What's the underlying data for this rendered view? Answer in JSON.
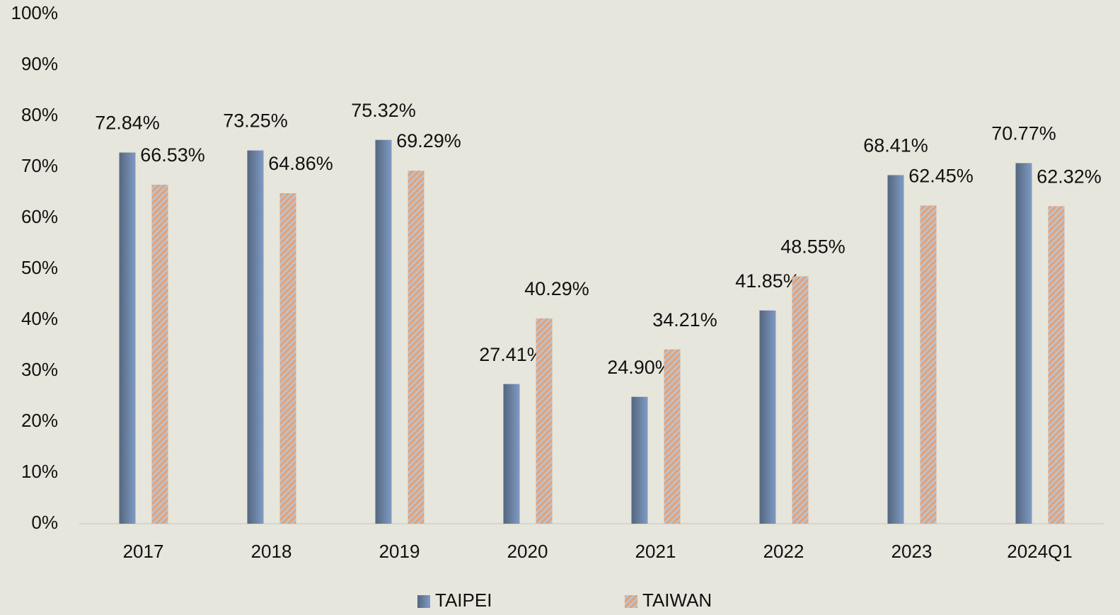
{
  "chart_data": {
    "type": "bar",
    "categories": [
      "2017",
      "2018",
      "2019",
      "2020",
      "2021",
      "2022",
      "2023",
      "2024Q1"
    ],
    "series": [
      {
        "name": "TAIPEI",
        "color": "#7f9bc4",
        "values": [
          72.84,
          73.25,
          75.32,
          27.41,
          24.9,
          41.85,
          68.41,
          70.77
        ],
        "value_labels": [
          "72.84%",
          "73.25%",
          "75.32%",
          "27.41%",
          "24.90%",
          "41.85%",
          "68.41%",
          "70.77%"
        ]
      },
      {
        "name": "TAIWAN",
        "color": "#e8a070",
        "values": [
          66.53,
          64.86,
          69.29,
          40.29,
          34.21,
          48.55,
          62.45,
          62.32
        ],
        "value_labels": [
          "66.53%",
          "64.86%",
          "69.29%",
          "40.29%",
          "34.21%",
          "48.55%",
          "62.45%",
          "62.32%"
        ]
      }
    ],
    "ylim": [
      0,
      100
    ],
    "yticks": [
      {
        "value": 0,
        "label": "0%"
      },
      {
        "value": 10,
        "label": "10%"
      },
      {
        "value": 20,
        "label": "20%"
      },
      {
        "value": 30,
        "label": "30%"
      },
      {
        "value": 40,
        "label": "40%"
      },
      {
        "value": 50,
        "label": "50%"
      },
      {
        "value": 60,
        "label": "60%"
      },
      {
        "value": 70,
        "label": "70%"
      },
      {
        "value": 80,
        "label": "80%"
      },
      {
        "value": 90,
        "label": "90%"
      },
      {
        "value": 100,
        "label": "100%"
      }
    ],
    "grid": false,
    "legend": "bottom"
  }
}
